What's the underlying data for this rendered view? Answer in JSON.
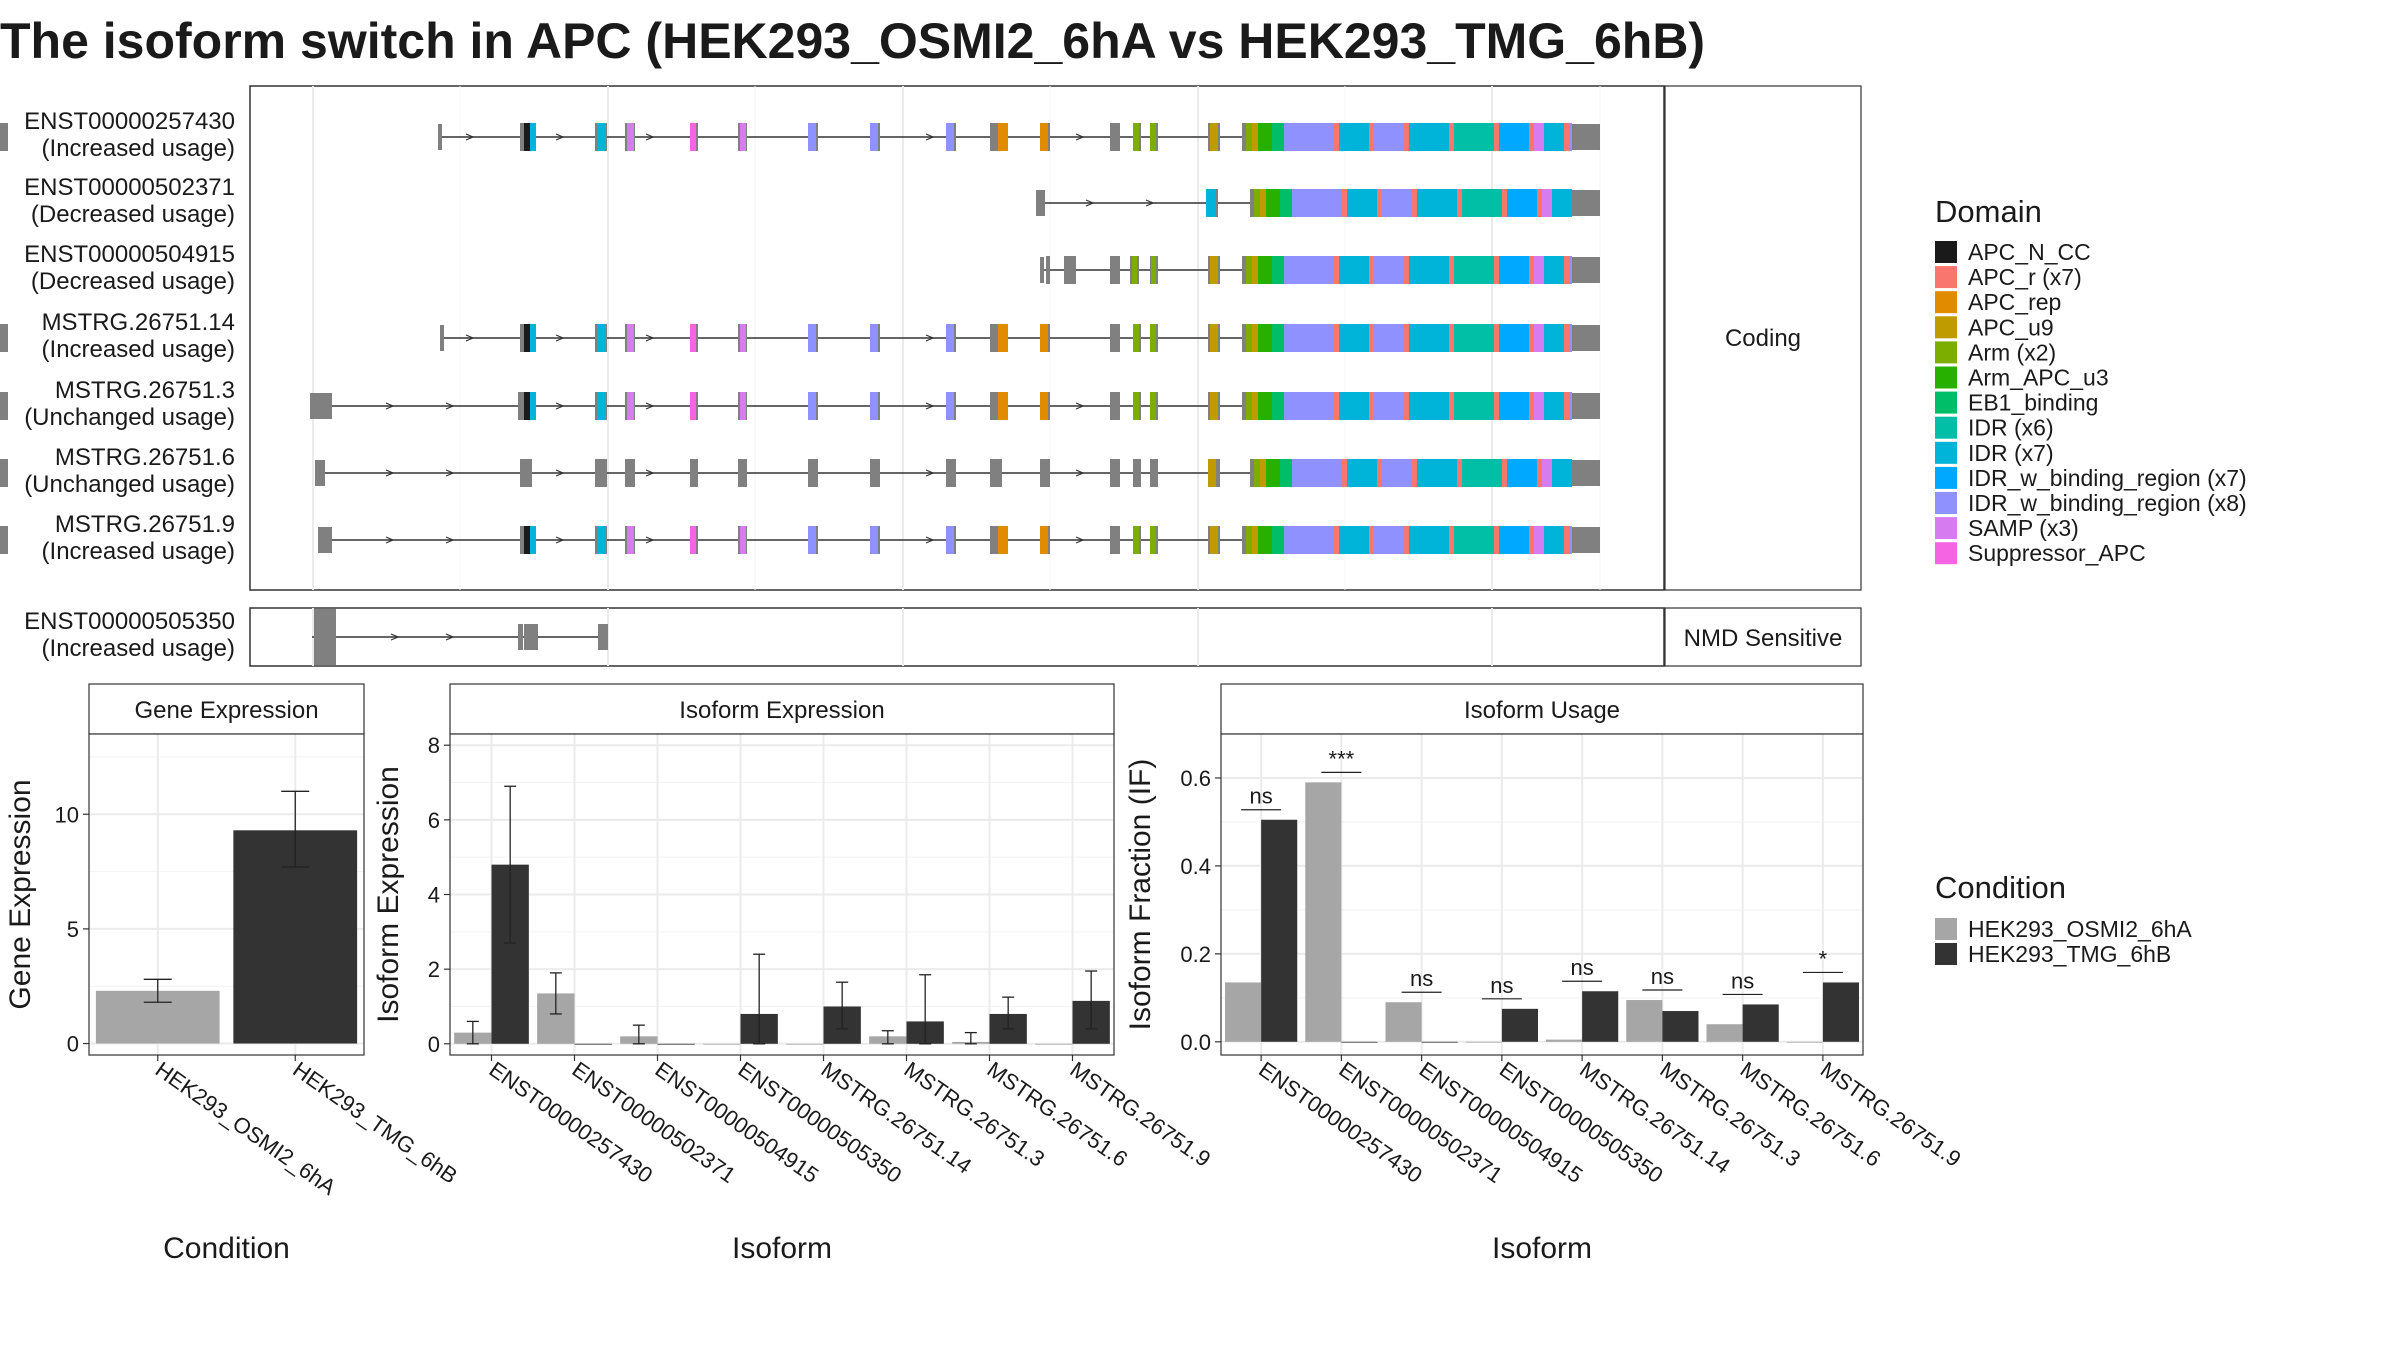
{
  "title": "The isoform switch in APC (HEK293_OSMI2_6hA vs HEK293_TMG_6hB)",
  "colors": {
    "HEK293_OSMI2_6hA": "#a6a6a6",
    "HEK293_TMG_6hB": "#333333",
    "exon": "#808080",
    "domains": {
      "APC_N_CC": "#1a1a1a",
      "APC_r": "#f8766d",
      "APC_rep": "#e08b00",
      "APC_u9": "#c09b00",
      "Arm": "#7cae00",
      "Arm_APC_u3": "#27b000",
      "EB1_binding": "#00be67",
      "IDR6": "#00bfa6",
      "IDR7": "#00b3d8",
      "IDRw7": "#00a9ff",
      "IDRw8": "#8f91fe",
      "SAMP": "#d67cf0",
      "Suppressor_APC": "#f564e3"
    }
  },
  "structure": {
    "groups": [
      "Coding",
      "NMD Sensitive"
    ],
    "transcripts": [
      {
        "id": "ENST00000257430",
        "status": "(Increased usage)",
        "group": "Coding"
      },
      {
        "id": "ENST00000502371",
        "status": "(Decreased usage)",
        "group": "Coding"
      },
      {
        "id": "ENST00000504915",
        "status": "(Decreased usage)",
        "group": "Coding"
      },
      {
        "id": "MSTRG.26751.14",
        "status": "(Increased usage)",
        "group": "Coding"
      },
      {
        "id": "MSTRG.26751.3",
        "status": "(Unchanged usage)",
        "group": "Coding"
      },
      {
        "id": "MSTRG.26751.6",
        "status": "(Unchanged usage)",
        "group": "Coding"
      },
      {
        "id": "MSTRG.26751.9",
        "status": "(Increased usage)",
        "group": "Coding"
      },
      {
        "id": "ENST00000505350",
        "status": "(Increased usage)",
        "group": "NMD Sensitive"
      }
    ]
  },
  "legend_domain": {
    "title": "Domain",
    "items": [
      {
        "label": "APC_N_CC",
        "color": "#1a1a1a"
      },
      {
        "label": "APC_r (x7)",
        "color": "#f8766d"
      },
      {
        "label": "APC_rep",
        "color": "#e08b00"
      },
      {
        "label": "APC_u9",
        "color": "#c09b00"
      },
      {
        "label": "Arm (x2)",
        "color": "#7cae00"
      },
      {
        "label": "Arm_APC_u3",
        "color": "#27b000"
      },
      {
        "label": "EB1_binding",
        "color": "#00be67"
      },
      {
        "label": "IDR (x6)",
        "color": "#00bfa6"
      },
      {
        "label": "IDR (x7)",
        "color": "#00b3d8"
      },
      {
        "label": "IDR_w_binding_region (x7)",
        "color": "#00a9ff"
      },
      {
        "label": "IDR_w_binding_region (x8)",
        "color": "#8f91fe"
      },
      {
        "label": "SAMP (x3)",
        "color": "#d67cf0"
      },
      {
        "label": "Suppressor_APC",
        "color": "#f564e3"
      }
    ]
  },
  "legend_condition": {
    "title": "Condition",
    "items": [
      {
        "label": "HEK293_OSMI2_6hA",
        "color": "#a6a6a6"
      },
      {
        "label": "HEK293_TMG_6hB",
        "color": "#333333"
      }
    ]
  },
  "chart_data": [
    {
      "type": "bar",
      "panel": "Gene Expression",
      "xlabel": "Condition",
      "ylabel": "Gene Expression",
      "categories": [
        "HEK293_OSMI2_6hA",
        "HEK293_TMG_6hB"
      ],
      "values": [
        2.3,
        9.3
      ],
      "error": [
        [
          1.8,
          2.8
        ],
        [
          7.7,
          11.0
        ]
      ],
      "ylim": [
        -0.5,
        13.5
      ],
      "yticks": [
        0,
        5,
        10
      ],
      "ytick_labels": [
        "0",
        "5",
        "10"
      ]
    },
    {
      "type": "bar",
      "panel": "Isoform Expression",
      "xlabel": "Isoform",
      "ylabel": "Isoform Expression",
      "categories": [
        "ENST00000257430",
        "ENST00000502371",
        "ENST00000504915",
        "ENST00000505350",
        "MSTRG.26751.14",
        "MSTRG.26751.3",
        "MSTRG.26751.6",
        "MSTRG.26751.9"
      ],
      "series": [
        {
          "name": "HEK293_OSMI2_6hA",
          "values": [
            0.3,
            1.35,
            0.2,
            0.0,
            0.0,
            0.2,
            0.05,
            0.0
          ],
          "error": [
            [
              0.0,
              0.6
            ],
            [
              0.8,
              1.9
            ],
            [
              0.0,
              0.5
            ],
            null,
            null,
            [
              0.0,
              0.35
            ],
            [
              0.0,
              0.3
            ],
            null
          ]
        },
        {
          "name": "HEK293_TMG_6hB",
          "values": [
            4.8,
            0.0,
            0.0,
            0.8,
            1.0,
            0.6,
            0.8,
            1.15
          ],
          "error": [
            [
              2.7,
              6.9
            ],
            null,
            null,
            [
              0.0,
              2.4
            ],
            [
              0.4,
              1.65
            ],
            [
              0.0,
              1.85
            ],
            [
              0.4,
              1.25
            ],
            [
              0.4,
              1.95
            ]
          ]
        }
      ],
      "ylim": [
        -0.3,
        8.3
      ],
      "yticks": [
        0,
        2,
        4,
        6,
        8
      ],
      "ytick_labels": [
        "0",
        "2",
        "4",
        "6",
        "8"
      ]
    },
    {
      "type": "bar",
      "panel": "Isoform Usage",
      "xlabel": "Isoform",
      "ylabel": "Isoform Fraction (IF)",
      "categories": [
        "ENST00000257430",
        "ENST00000502371",
        "ENST00000504915",
        "ENST00000505350",
        "MSTRG.26751.14",
        "MSTRG.26751.3",
        "MSTRG.26751.6",
        "MSTRG.26751.9"
      ],
      "series": [
        {
          "name": "HEK293_OSMI2_6hA",
          "values": [
            0.135,
            0.59,
            0.09,
            0.0,
            0.005,
            0.095,
            0.04,
            0.0
          ]
        },
        {
          "name": "HEK293_TMG_6hB",
          "values": [
            0.505,
            0.0,
            0.0,
            0.075,
            0.115,
            0.07,
            0.085,
            0.135
          ]
        }
      ],
      "significance": [
        "ns",
        "***",
        "ns",
        "ns",
        "ns",
        "ns",
        "ns",
        "*"
      ],
      "ylim": [
        -0.03,
        0.7
      ],
      "yticks": [
        0.0,
        0.2,
        0.4,
        0.6
      ],
      "ytick_labels": [
        "0.0",
        "0.2",
        "0.4",
        "0.6"
      ]
    }
  ]
}
